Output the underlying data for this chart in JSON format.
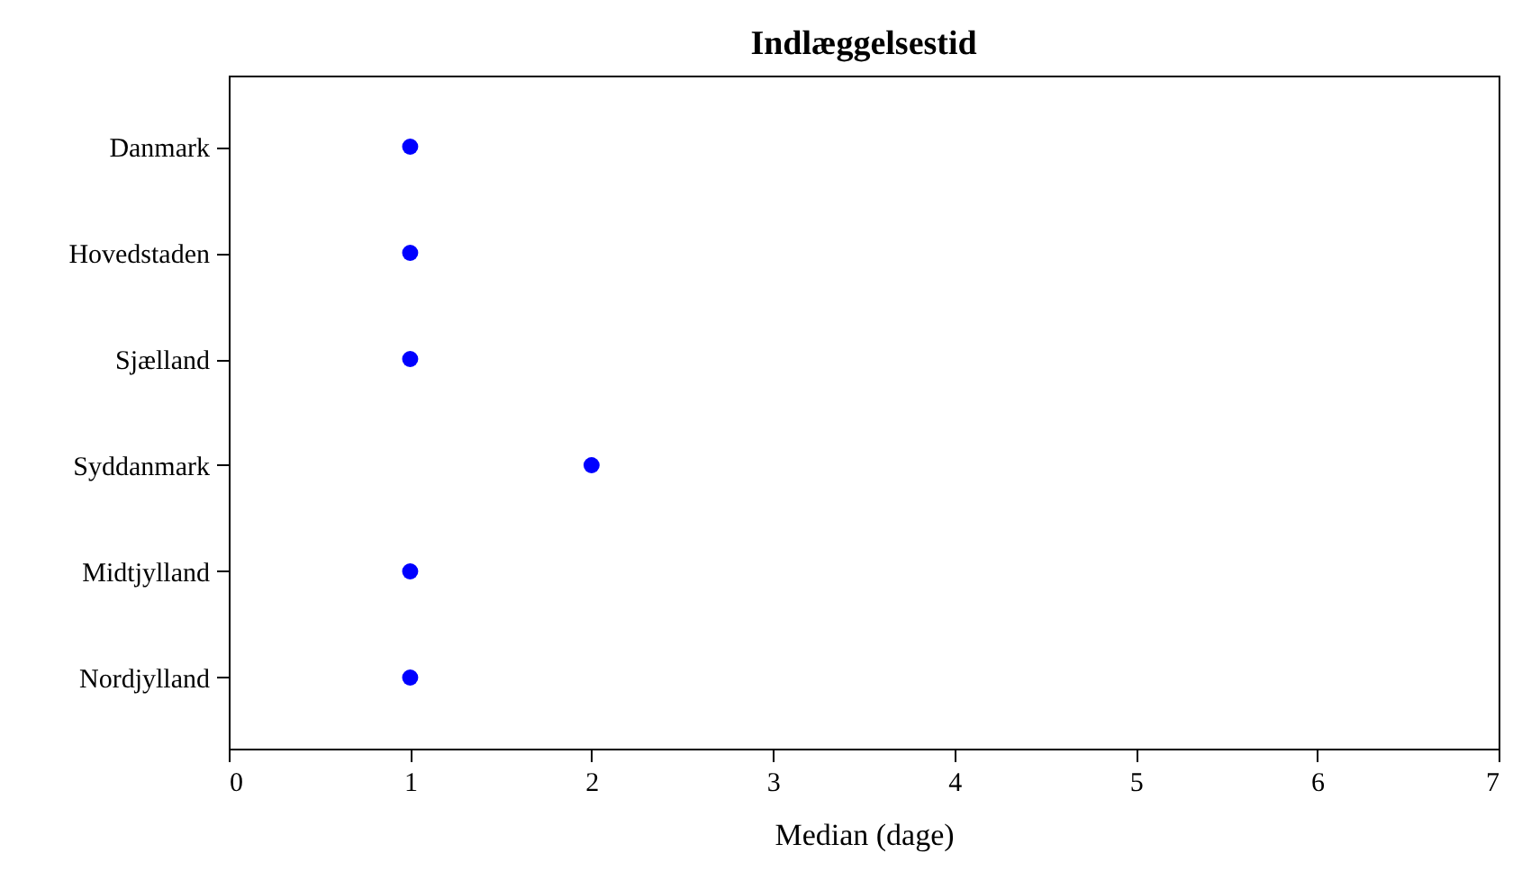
{
  "chart_data": {
    "type": "scatter",
    "title": "Indlæggelsestid",
    "xlabel": "Median (dage)",
    "orientation": "horizontal",
    "categories": [
      "Danmark",
      "Hovedstaden",
      "Sjælland",
      "Syddanmark",
      "Midtjylland",
      "Nordjylland"
    ],
    "values": [
      1,
      1,
      1,
      2,
      1,
      1
    ],
    "color": "#0000ff",
    "marker": "circle",
    "xlim": [
      0,
      7
    ],
    "xticks": [
      0,
      1,
      2,
      3,
      4,
      5,
      6,
      7
    ],
    "grid": false
  }
}
